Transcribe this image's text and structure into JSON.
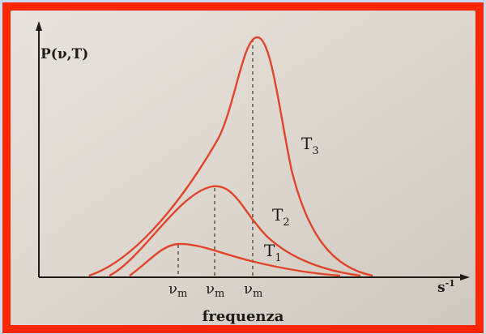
{
  "diagram": {
    "y_axis_label": "P(ν,T)",
    "x_axis_label": "frequenza",
    "x_unit": {
      "base": "s",
      "sup": "-1"
    },
    "curves": [
      {
        "symbol": "T",
        "sub": "1"
      },
      {
        "symbol": "T",
        "sub": "2"
      },
      {
        "symbol": "T",
        "sub": "3"
      }
    ],
    "peaks": [
      {
        "symbol": "ν",
        "sub": "m"
      },
      {
        "symbol": "ν",
        "sub": "m"
      },
      {
        "symbol": "ν",
        "sub": "m"
      }
    ]
  }
}
